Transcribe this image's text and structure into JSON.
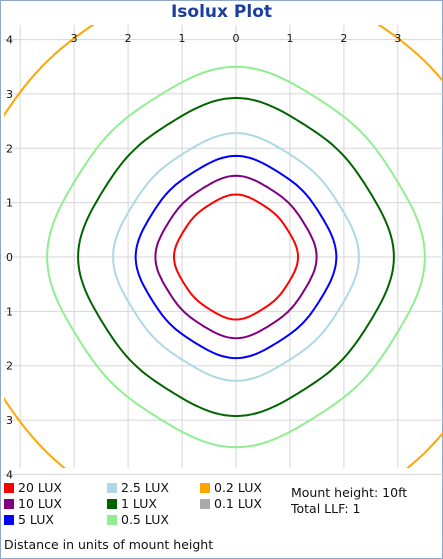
{
  "chart_data": {
    "type": "line",
    "title": "Isolux Plot",
    "xlim": [
      -4,
      4
    ],
    "ylim": [
      -4,
      4
    ],
    "grid": true,
    "x_tick_labels": [
      "3",
      "2",
      "1",
      "0",
      "1",
      "2",
      "3"
    ],
    "y_tick_labels": [
      "4",
      "3",
      "2",
      "1",
      "0",
      "1",
      "2",
      "3",
      "4"
    ],
    "legend": [
      {
        "label": "20 LUX",
        "color": "#ff0000"
      },
      {
        "label": "10 LUX",
        "color": "#800080"
      },
      {
        "label": "5 LUX",
        "color": "#0000ff"
      },
      {
        "label": "2.5 LUX",
        "color": "#add8e6"
      },
      {
        "label": "1 LUX",
        "color": "#006400"
      },
      {
        "label": "0.5 LUX",
        "color": "#90ee90"
      },
      {
        "label": "0.2 LUX",
        "color": "#ffa500"
      },
      {
        "label": "0.1 LUX",
        "color": "#a9a9a9"
      }
    ],
    "series": [
      {
        "label": "20 LUX",
        "color": "#ff0000",
        "radius": 1.1
      },
      {
        "label": "10 LUX",
        "color": "#800080",
        "radius": 1.43
      },
      {
        "label": "5 LUX",
        "color": "#0000ff",
        "radius": 1.78
      },
      {
        "label": "2.5 LUX",
        "color": "#add8e6",
        "radius": 2.18
      },
      {
        "label": "1 LUX",
        "color": "#006400",
        "radius": 2.8
      },
      {
        "label": "0.5 LUX",
        "color": "#90ee90",
        "radius": 3.35
      },
      {
        "label": "0.2 LUX",
        "color": "#ffa500",
        "radius": 5.15
      }
    ],
    "info": {
      "mount_height": "Mount height: 10ft",
      "total_llf": "Total LLF: 1"
    },
    "footnote": "Distance in units of mount height"
  }
}
